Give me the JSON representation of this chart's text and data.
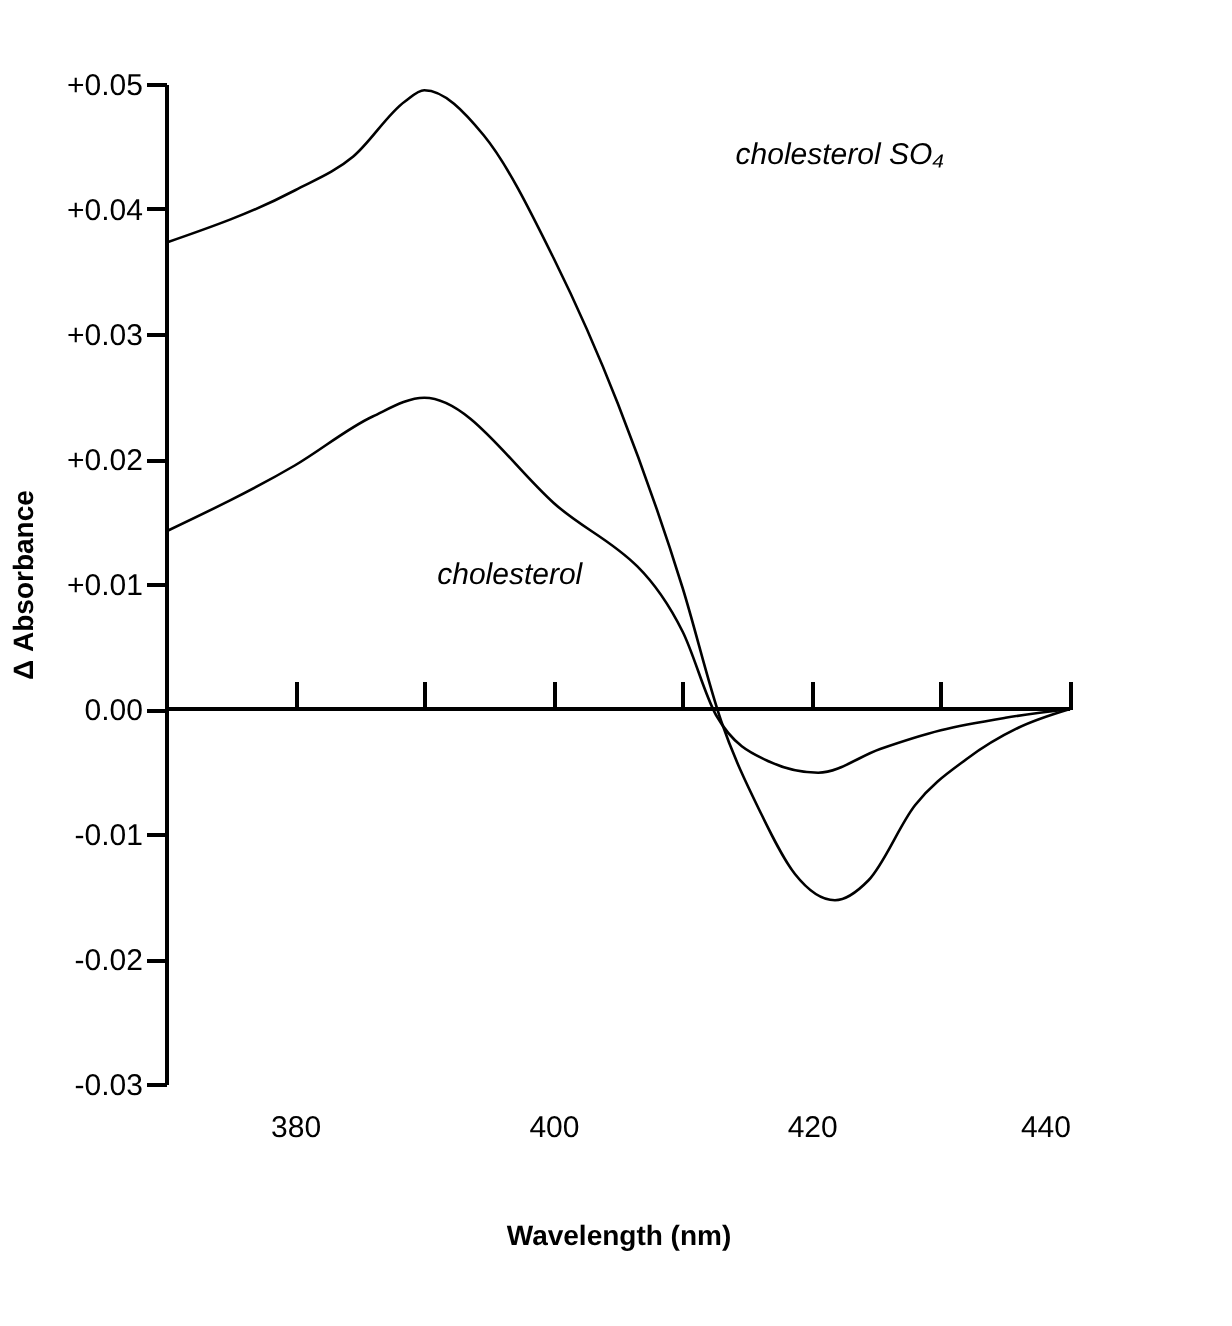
{
  "chart_data": {
    "type": "line",
    "xlabel": "Wavelength (nm)",
    "ylabel": "Δ Absorbance",
    "xlim": [
      370,
      440
    ],
    "xticks": [
      380,
      {
        "value": 390,
        "label": null
      },
      400,
      {
        "value": 410,
        "label": null
      },
      420,
      {
        "value": 430,
        "label": null
      },
      440
    ],
    "ylim": [
      -0.03,
      0.05
    ],
    "yticks": [
      {
        "value": -0.03,
        "label": "-0.03"
      },
      {
        "value": -0.02,
        "label": "-0.02"
      },
      {
        "value": -0.01,
        "label": "-0.01"
      },
      {
        "value": 0,
        "label": "0.00"
      },
      {
        "value": 0.01,
        "label": "+0.01"
      },
      {
        "value": 0.02,
        "label": "+0.02"
      },
      {
        "value": 0.03,
        "label": "+0.03"
      },
      {
        "value": 0.04,
        "label": "+0.04"
      },
      {
        "value": 0.05,
        "label": "+0.05"
      }
    ],
    "grid": false,
    "marker": "none",
    "ref_lines": [
      {
        "axis": "y",
        "value": 0,
        "color": "#000000"
      }
    ],
    "line_style": "solid",
    "series": [
      {
        "color": "#000000",
        "x": [
          370,
          380,
          384.5,
          388.5,
          390,
          394.6,
          400,
          405,
          410,
          413,
          416,
          418.7,
          421.8,
          424.4,
          428,
          432,
          436,
          440
        ],
        "values": [
          0.0373,
          0.0415,
          0.0442,
          0.0486,
          0.0495,
          0.0459,
          0.0361,
          0.0244,
          0.0097,
          -0.001,
          -0.0082,
          -0.0132,
          -0.0153,
          -0.0137,
          -0.0077,
          -0.004,
          -0.0015,
          0
        ]
      },
      {
        "color": "#000000",
        "x": [
          370,
          380,
          386,
          390,
          400,
          410,
          412.6,
          416.7,
          420.5,
          425.3,
          430,
          435,
          440
        ],
        "values": [
          0.0142,
          0.0195,
          0.0234,
          0.0249,
          0.0165,
          0.0062,
          -0.0005,
          -0.0042,
          -0.0051,
          -0.0032,
          -0.0017,
          -0.0007,
          0
        ]
      }
    ],
    "annotations": [
      "cholesterol SO₄",
      "cholesterol"
    ]
  }
}
